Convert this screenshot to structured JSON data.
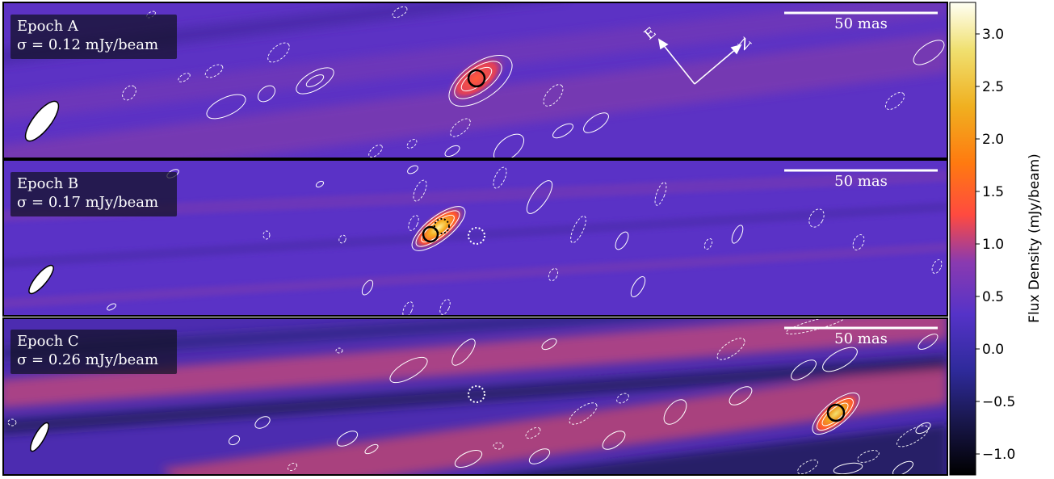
{
  "figure": {
    "panels": [
      {
        "epoch_label": "Epoch A",
        "sigma_label": "σ = 0.12 mJy/beam",
        "scale_bar_label": "50 mas",
        "show_compass": true,
        "solid_circle": true,
        "dotted_circle": false
      },
      {
        "epoch_label": "Epoch B",
        "sigma_label": "σ = 0.17 mJy/beam",
        "scale_bar_label": "50 mas",
        "show_compass": false,
        "solid_circle": true,
        "dotted_circle": true
      },
      {
        "epoch_label": "Epoch C",
        "sigma_label": "σ = 0.26 mJy/beam",
        "scale_bar_label": "50 mas",
        "show_compass": false,
        "solid_circle": true,
        "dotted_circle": true
      }
    ],
    "compass": {
      "east": "E",
      "north": "N"
    },
    "colorbar": {
      "label": "Flux Density (mJy/beam)",
      "ticks": [
        "3.0",
        "2.5",
        "2.0",
        "1.5",
        "1.0",
        "0.5",
        "0.0",
        "−0.5",
        "−1.0"
      ],
      "tick_values": [
        3.0,
        2.5,
        2.0,
        1.5,
        1.0,
        0.5,
        0.0,
        -0.5,
        -1.0
      ],
      "vmin": -1.2,
      "vmax": 3.3,
      "colormap": "CMRmap-like",
      "colors": [
        "#000000",
        "#2a2680",
        "#5533c8",
        "#ff4a40",
        "#ff8a00",
        "#f0c020",
        "#fffff0"
      ]
    }
  }
}
